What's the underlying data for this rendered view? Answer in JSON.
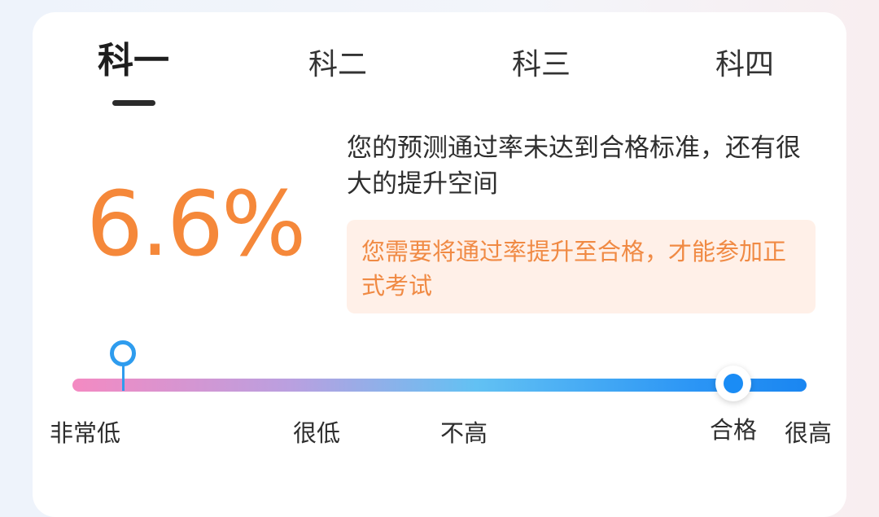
{
  "tabs": [
    {
      "label": "科一",
      "active": true
    },
    {
      "label": "科二",
      "active": false
    },
    {
      "label": "科三",
      "active": false
    },
    {
      "label": "科四",
      "active": false
    }
  ],
  "prediction": {
    "pass_rate": "6.6%",
    "message": "您的预测通过率未达到合格标准，还有很大的提升空间",
    "tip": "您需要将通过率提升至合格，才能参加正式考试"
  },
  "scale": {
    "labels": [
      "非常低",
      "很低",
      "不高",
      "合格",
      "很高"
    ],
    "current_position_fraction": 0.07,
    "pass_position_fraction": 0.9
  },
  "colors": {
    "accent_orange": "#f5883a",
    "tip_background": "#fff0e8",
    "marker_blue": "#2e9cee",
    "threshold_blue": "#1a8cf5"
  }
}
